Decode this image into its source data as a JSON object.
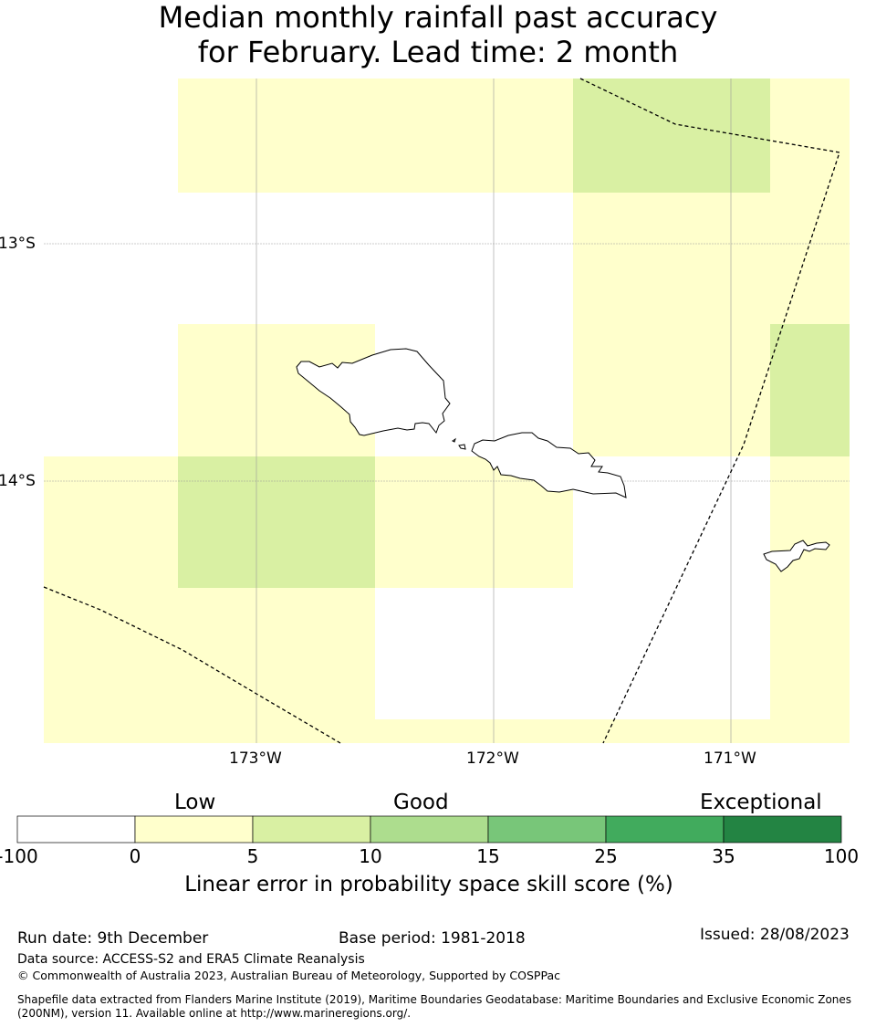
{
  "title_line1": "Median monthly rainfall past accuracy",
  "title_line2": "for February. Lead time: 2 month",
  "map": {
    "lat_labels": [
      "13°S",
      "14°S"
    ],
    "lon_labels": [
      "173°W",
      "172°W",
      "171°W"
    ]
  },
  "colorbar": {
    "categories": [
      "Low",
      "Good",
      "Exceptional"
    ],
    "ticks": [
      "-100",
      "0",
      "5",
      "10",
      "15",
      "25",
      "35",
      "100"
    ],
    "colors": [
      "#ffffff",
      "#ffffcc",
      "#d9f0a3",
      "#addd8e",
      "#78c679",
      "#41ab5d",
      "#238443"
    ],
    "label": "Linear error in probability space skill score (%)"
  },
  "footer": {
    "run_date": "Run date: 9th December",
    "base_period": "Base period: 1981-2018",
    "issued": "Issued: 28/08/2023",
    "data_source": "Data source: ACCESS-S2 and ERA5 Climate Reanalysis",
    "copyright": "© Commonwealth of Australia 2023, Australian Bureau of Meteorology, Supported by COSPPac",
    "shapefile_line1": "Shapefile data extracted from Flanders Marine Institute (2019), Maritime Boundaries Geodatabase: Maritime Boundaries and Exclusive Economic Zones",
    "shapefile_line2": "(200NM), version 11. Available online at http://www.marineregions.org/."
  }
}
